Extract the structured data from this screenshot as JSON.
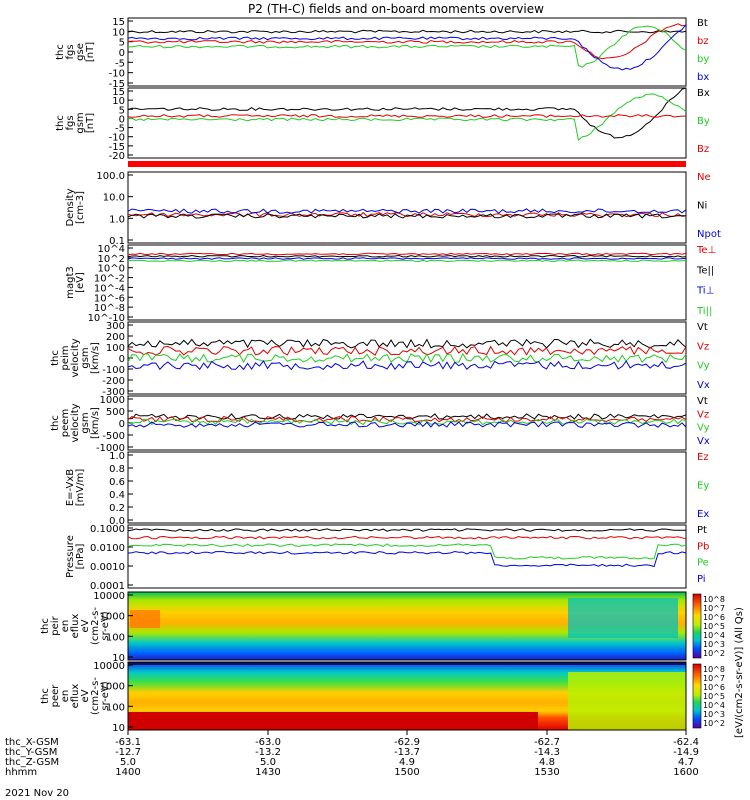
{
  "title": "P2 (TH-C) fields and on-board moments overview",
  "colors": {
    "black": "#000000",
    "red": "#e00000",
    "green": "#22cc22",
    "blue": "#0000dd",
    "bar": "#ff0000"
  },
  "colorbar": {
    "label": "[eV/(cm2-s-sr-eV)] (All Qs)",
    "ticks": [
      "10^8",
      "10^7",
      "10^6",
      "10^5",
      "10^4",
      "10^3",
      "10^2"
    ],
    "ticks2": [
      "10^8",
      "10^7",
      "10^6",
      "10^5",
      "10^4",
      "10^3",
      "10^2"
    ]
  },
  "footer": {
    "rows": [
      {
        "label": "thc_X-GSM",
        "values": [
          "-63.1",
          "-63.0",
          "-62.9",
          "-62.7",
          "-62.4"
        ]
      },
      {
        "label": "thc_Y-GSM",
        "values": [
          "-12.7",
          "-13.2",
          "-13.7",
          "-14.3",
          "-14.9"
        ]
      },
      {
        "label": "thc_Z-GSM",
        "values": [
          "5.0",
          "5.0",
          "4.9",
          "4.8",
          "4.7"
        ]
      },
      {
        "label": "hhmm",
        "values": [
          "1400",
          "1430",
          "1500",
          "1530",
          "1600"
        ]
      }
    ],
    "date": "2021 Nov 20"
  },
  "chart_data": [
    {
      "type": "line",
      "panel": "thc fgs gse",
      "ylabel": [
        "thc",
        "fgs",
        "gse",
        "[nT]"
      ],
      "ylim": [
        -15,
        15
      ],
      "ticks": [
        "15",
        "10",
        "5",
        "0",
        "-5",
        "-10",
        "-15"
      ],
      "series": [
        {
          "name": "Bt",
          "color": "#000000"
        },
        {
          "name": "bz",
          "color": "#e00000"
        },
        {
          "name": "by",
          "color": "#22cc22"
        },
        {
          "name": "bx",
          "color": "#0000dd"
        }
      ]
    },
    {
      "type": "line",
      "panel": "thc fgs gsm",
      "ylabel": [
        "thc",
        "fgs",
        "gsm",
        "[nT]"
      ],
      "ylim": [
        -20,
        15
      ],
      "ticks": [
        "15",
        "10",
        "5",
        "0",
        "-5",
        "-10",
        "-15",
        "-20"
      ],
      "series": [
        {
          "name": "Bx",
          "color": "#000000"
        },
        {
          "name": "By",
          "color": "#22cc22"
        },
        {
          "name": "Bz",
          "color": "#e00000"
        }
      ]
    },
    {
      "type": "bar",
      "panel": "flag bar"
    },
    {
      "type": "line",
      "panel": "Density",
      "ylabel": [
        "Density",
        "[cm-3]"
      ],
      "scale": "log",
      "ticks": [
        "100.0",
        "10.0",
        "1.0",
        "0.1"
      ],
      "series": [
        {
          "name": "Ne",
          "color": "#e00000"
        },
        {
          "name": "Ni",
          "color": "#000000"
        },
        {
          "name": "Npot",
          "color": "#0000dd"
        }
      ]
    },
    {
      "type": "line",
      "panel": "Temperature",
      "ylabel": [
        "magt3",
        "[eV]"
      ],
      "scale": "log",
      "ticks": [
        "10^4",
        "10^2",
        "10^0",
        "10^-2",
        "10^-4",
        "10^-6",
        "10^-8",
        "10^-10"
      ],
      "series": [
        {
          "name": "Te⊥",
          "color": "#e00000"
        },
        {
          "name": "Te||",
          "color": "#000000"
        },
        {
          "name": "Ti⊥",
          "color": "#0000dd"
        },
        {
          "name": "Ti||",
          "color": "#22cc22"
        }
      ]
    },
    {
      "type": "line",
      "panel": "peim velocity",
      "ylabel": [
        "thc",
        "peim",
        "velocity",
        "gsm",
        "[km/s]"
      ],
      "ylim": [
        -300,
        300
      ],
      "ticks": [
        "300",
        "200",
        "100",
        "0",
        "-100",
        "-200",
        "-300"
      ],
      "series": [
        {
          "name": "Vt",
          "color": "#000000"
        },
        {
          "name": "Vz",
          "color": "#e00000"
        },
        {
          "name": "Vy",
          "color": "#22cc22"
        },
        {
          "name": "Vx",
          "color": "#0000dd"
        }
      ]
    },
    {
      "type": "line",
      "panel": "peem velocity",
      "ylabel": [
        "thc",
        "peem",
        "velocity",
        "gsm",
        "[km/s]"
      ],
      "ylim": [
        -1000,
        1000
      ],
      "ticks": [
        "1000",
        "500",
        "0",
        "-500",
        "-1000"
      ],
      "series": [
        {
          "name": "Vt",
          "color": "#000000"
        },
        {
          "name": "Vz",
          "color": "#e00000"
        },
        {
          "name": "Vy",
          "color": "#22cc22"
        },
        {
          "name": "Vx",
          "color": "#0000dd"
        }
      ]
    },
    {
      "type": "line",
      "panel": "E=-VxB",
      "ylabel": [
        "E=-VxB",
        "[mV/m]"
      ],
      "ylim": [
        0,
        1
      ],
      "ticks": [
        "1.0",
        "0.8",
        "0.6",
        "0.4",
        "0.2",
        "0.0"
      ],
      "series": [
        {
          "name": "Ez",
          "color": "#e00000"
        },
        {
          "name": "Ey",
          "color": "#22cc22"
        },
        {
          "name": "Ex",
          "color": "#0000dd"
        }
      ]
    },
    {
      "type": "line",
      "panel": "Pressure",
      "ylabel": [
        "Pressure",
        "[nPa]"
      ],
      "scale": "log",
      "ticks": [
        "0.1000",
        "0.0100",
        "0.0010",
        "0.0001"
      ],
      "series": [
        {
          "name": "Pt",
          "color": "#000000"
        },
        {
          "name": "Pb",
          "color": "#e00000"
        },
        {
          "name": "Pe",
          "color": "#22cc22"
        },
        {
          "name": "Pi",
          "color": "#0000dd"
        }
      ]
    },
    {
      "type": "heatmap",
      "panel": "peir en eflux",
      "ylabel": [
        "thc",
        "peir",
        "en",
        "eflux",
        "eV",
        "(cm2-s-",
        "sr-eV)"
      ],
      "ticks": [
        "10000",
        "1000",
        "100",
        "10"
      ]
    },
    {
      "type": "heatmap",
      "panel": "peer en eflux",
      "ylabel": [
        "thc",
        "peer",
        "en",
        "eflux",
        "eV",
        "(cm2-s-",
        "sr-eV)"
      ],
      "ticks": [
        "10000",
        "1000",
        "100",
        "10"
      ]
    }
  ]
}
